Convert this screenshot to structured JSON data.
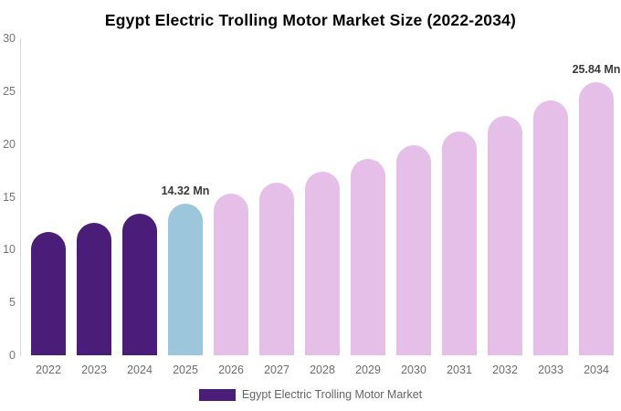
{
  "chart_data": {
    "type": "bar",
    "title": "Egypt Electric Trolling Motor Market Size (2022-2034)",
    "categories": [
      "2022",
      "2023",
      "2024",
      "2025",
      "2026",
      "2027",
      "2028",
      "2029",
      "2030",
      "2031",
      "2032",
      "2033",
      "2034"
    ],
    "values": [
      11.7,
      12.55,
      13.4,
      14.32,
      15.29,
      16.32,
      17.42,
      18.6,
      19.86,
      21.2,
      22.63,
      24.15,
      25.84
    ],
    "point_labels": [
      "",
      "",
      "",
      "14.32 Mn",
      "",
      "",
      "",
      "",
      "",
      "",
      "",
      "",
      "25.84 Mn"
    ],
    "point_colors": [
      "#4a1e78",
      "#4a1e78",
      "#4a1e78",
      "#9cc6dc",
      "#e5bfe7",
      "#e5bfe7",
      "#e5bfe7",
      "#e5bfe7",
      "#e5bfe7",
      "#e5bfe7",
      "#e5bfe7",
      "#e5bfe7",
      "#e5bfe7"
    ],
    "xlabel": "",
    "ylabel": "",
    "ylim": [
      0,
      30
    ],
    "yticks": [
      0,
      5,
      10,
      15,
      20,
      25,
      30
    ],
    "grid": false,
    "legend": {
      "position": "bottom",
      "items": [
        {
          "label": "Egypt Electric Trolling Motor Market",
          "color": "#4a1e78"
        }
      ]
    },
    "colors": {
      "historical": "#4a1e78",
      "base_year": "#9cc6dc",
      "forecast": "#e5bfe7",
      "axis_line": "#d9d9d9",
      "tick_text": "#6e6e6e",
      "value_label_text": "#3a3a3a"
    }
  }
}
